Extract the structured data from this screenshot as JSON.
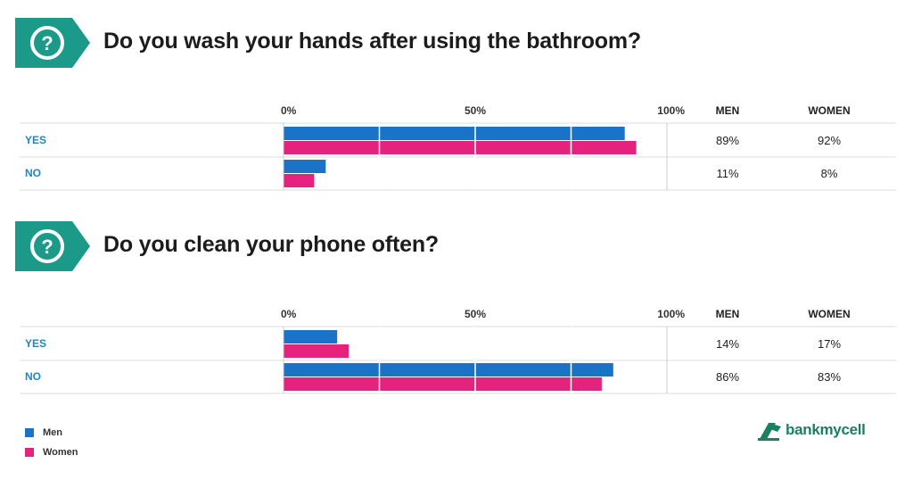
{
  "colors": {
    "men": "#1a73c6",
    "women": "#e5227e",
    "accent": "#1b9a8a",
    "rowLabel": "#1e88c2",
    "brand": "#1b7f62"
  },
  "icons": {
    "question": "question-mark-icon",
    "logo": "bankmycell-logo-icon"
  },
  "chart_data": [
    {
      "type": "bar",
      "orientation": "horizontal",
      "title": "Do you wash your hands after using the bathroom?",
      "axis_ticks": [
        "0%",
        "50%",
        "100%"
      ],
      "xlim": [
        0,
        100
      ],
      "grid": true,
      "columns": [
        "MEN",
        "WOMEN"
      ],
      "categories": [
        "YES",
        "NO"
      ],
      "series": [
        {
          "name": "Men",
          "values": [
            89,
            11
          ],
          "labels": [
            "89%",
            "11%"
          ]
        },
        {
          "name": "Women",
          "values": [
            92,
            8
          ],
          "labels": [
            "92%",
            "8%"
          ]
        }
      ]
    },
    {
      "type": "bar",
      "orientation": "horizontal",
      "title": "Do you clean your phone often?",
      "axis_ticks": [
        "0%",
        "50%",
        "100%"
      ],
      "xlim": [
        0,
        100
      ],
      "grid": true,
      "columns": [
        "MEN",
        "WOMEN"
      ],
      "categories": [
        "YES",
        "NO"
      ],
      "series": [
        {
          "name": "Men",
          "values": [
            14,
            86
          ],
          "labels": [
            "14%",
            "86%"
          ]
        },
        {
          "name": "Women",
          "values": [
            17,
            83
          ],
          "labels": [
            "17%",
            "83%"
          ]
        }
      ]
    }
  ],
  "legend": {
    "items": [
      "Men",
      "Women"
    ],
    "placement": "bottom-left"
  },
  "logo": {
    "text": "bankmycell"
  }
}
